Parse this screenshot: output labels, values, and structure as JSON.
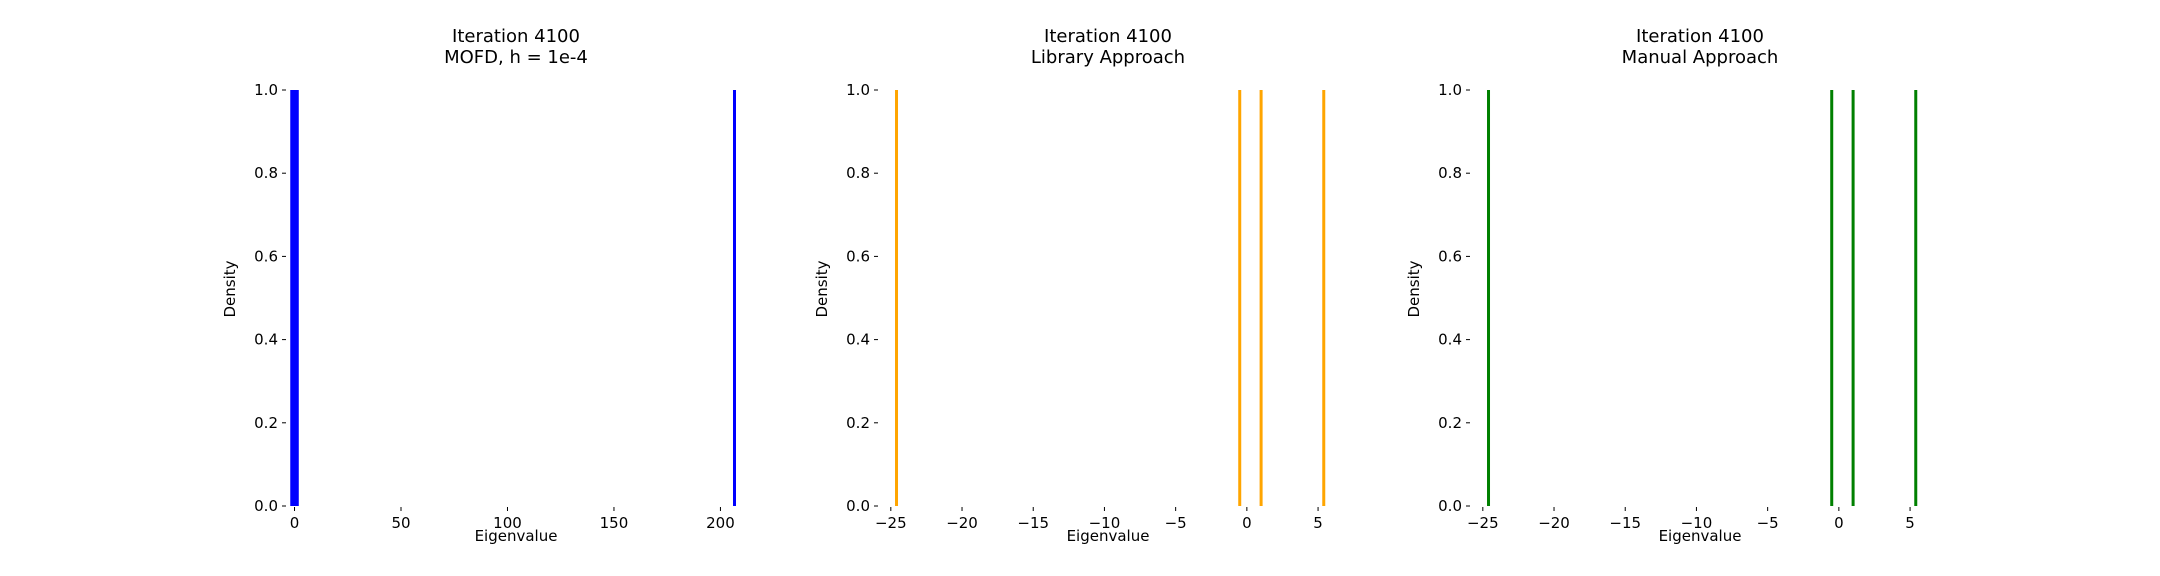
{
  "chart_data": [
    {
      "type": "bar",
      "title": "Iteration 4100",
      "subtitle": "MOFD, h = 1e-4",
      "xlabel": "Eigenvalue",
      "ylabel": "Density",
      "color": "#0000ff",
      "xlim": [
        -4,
        212
      ],
      "ylim": [
        0,
        1.0
      ],
      "xticks": [
        0,
        50,
        100,
        150,
        200
      ],
      "xtick_labels": [
        "0",
        "50",
        "100",
        "150",
        "200"
      ],
      "yticks": [
        0.0,
        0.2,
        0.4,
        0.6,
        0.8,
        1.0
      ],
      "ytick_labels": [
        "0.0",
        "0.2",
        "0.4",
        "0.6",
        "0.8",
        "1.0"
      ],
      "grid": false,
      "bars": [
        {
          "x0": -2.0,
          "x1": 2.0,
          "value": 1.0
        },
        {
          "x0": 206.0,
          "x1": 207.2,
          "value": 1.0
        }
      ]
    },
    {
      "type": "bar",
      "title": "Iteration 4100",
      "subtitle": "Library Approach",
      "xlabel": "Eigenvalue",
      "ylabel": "Density",
      "color": "#ffa500",
      "xlim": [
        -25.9,
        6.4
      ],
      "ylim": [
        0,
        1.0
      ],
      "xticks": [
        -25,
        -20,
        -15,
        -10,
        -5,
        0,
        5
      ],
      "xtick_labels": [
        "−25",
        "−20",
        "−15",
        "−10",
        "−5",
        "0",
        "5"
      ],
      "yticks": [
        0.0,
        0.2,
        0.4,
        0.6,
        0.8,
        1.0
      ],
      "ytick_labels": [
        "0.0",
        "0.2",
        "0.4",
        "0.6",
        "0.8",
        "1.0"
      ],
      "grid": false,
      "bars": [
        {
          "x0": -24.7,
          "x1": -24.5,
          "value": 1.0
        },
        {
          "x0": -0.6,
          "x1": -0.4,
          "value": 1.0
        },
        {
          "x0": 0.9,
          "x1": 1.1,
          "value": 1.0
        },
        {
          "x0": 5.3,
          "x1": 5.5,
          "value": 1.0
        }
      ]
    },
    {
      "type": "bar",
      "title": "Iteration 4100",
      "subtitle": "Manual Approach",
      "xlabel": "Eigenvalue",
      "ylabel": "Density",
      "color": "#008000",
      "xlim": [
        -25.9,
        6.4
      ],
      "ylim": [
        0,
        1.0
      ],
      "xticks": [
        -25,
        -20,
        -15,
        -10,
        -5,
        0,
        5
      ],
      "xtick_labels": [
        "−25",
        "−20",
        "−15",
        "−10",
        "−5",
        "0",
        "5"
      ],
      "yticks": [
        0.0,
        0.2,
        0.4,
        0.6,
        0.8,
        1.0
      ],
      "ytick_labels": [
        "0.0",
        "0.2",
        "0.4",
        "0.6",
        "0.8",
        "1.0"
      ],
      "grid": false,
      "bars": [
        {
          "x0": -24.7,
          "x1": -24.5,
          "value": 1.0
        },
        {
          "x0": -0.6,
          "x1": -0.4,
          "value": 1.0
        },
        {
          "x0": 0.9,
          "x1": 1.1,
          "value": 1.0
        },
        {
          "x0": 5.3,
          "x1": 5.5,
          "value": 1.0
        }
      ]
    }
  ]
}
